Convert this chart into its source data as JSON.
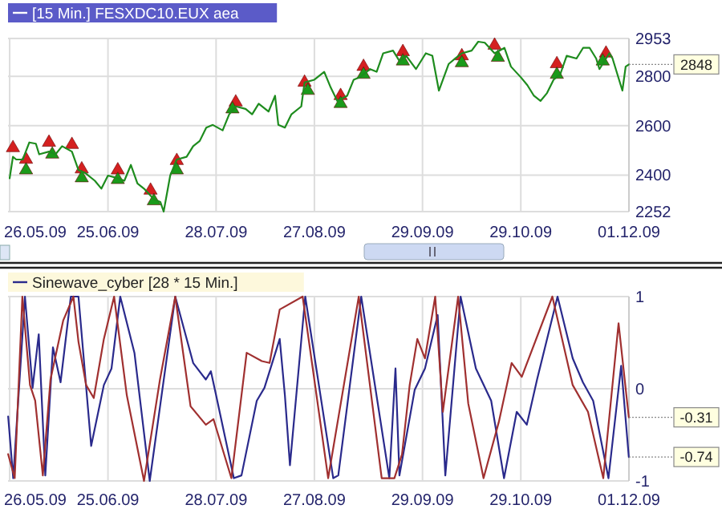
{
  "chart_data": [
    {
      "type": "line",
      "legend": "top left",
      "grid": true,
      "xlim": [
        "2009-05-25T12:00",
        "2009-12-01"
      ],
      "xticks": [
        {
          "value": "2009-05-26",
          "label": "26.05.09"
        },
        {
          "value": "2009-06-25",
          "label": "25.06.09"
        },
        {
          "value": "2009-07-28",
          "label": "28.07.09"
        },
        {
          "value": "2009-08-27",
          "label": "27.08.09"
        },
        {
          "value": "2009-09-29",
          "label": "29.09.09"
        },
        {
          "value": "2009-10-29",
          "label": "29.10.09"
        },
        {
          "value": "2009-12-01",
          "label": "01.12.09"
        }
      ],
      "ylim": [
        2252,
        2953
      ],
      "yticks": [
        2252,
        2400,
        2600,
        2800,
        2953
      ],
      "annotations": [
        {
          "text": "2848",
          "x": "2009-12-01",
          "y": 2848
        }
      ],
      "series": [
        {
          "name": "[15 Min.] FESXDC10.EUX aea",
          "color": "#1e8c1e",
          "x": [
            "2009-05-26",
            "2009-05-27",
            "2009-05-28",
            "2009-05-30",
            "2009-06-01",
            "2009-06-03",
            "2009-06-04",
            "2009-06-07",
            "2009-06-09",
            "2009-06-11",
            "2009-06-14",
            "2009-06-16",
            "2009-06-18",
            "2009-06-21",
            "2009-06-23",
            "2009-06-25",
            "2009-06-28",
            "2009-06-30",
            "2009-07-02",
            "2009-07-04",
            "2009-07-06",
            "2009-07-09",
            "2009-07-11",
            "2009-07-12",
            "2009-07-14",
            "2009-07-16",
            "2009-07-19",
            "2009-07-21",
            "2009-07-23",
            "2009-07-25",
            "2009-07-27",
            "2009-07-30",
            "2009-08-01",
            "2009-08-03",
            "2009-08-06",
            "2009-08-08",
            "2009-08-10",
            "2009-08-13",
            "2009-08-15",
            "2009-08-16",
            "2009-08-18",
            "2009-08-20",
            "2009-08-23",
            "2009-08-24",
            "2009-08-27",
            "2009-08-30",
            "2009-09-01",
            "2009-09-03",
            "2009-09-06",
            "2009-09-08",
            "2009-09-10",
            "2009-09-13",
            "2009-09-15",
            "2009-09-17",
            "2009-09-20",
            "2009-09-22",
            "2009-09-24",
            "2009-09-27",
            "2009-09-30",
            "2009-10-02",
            "2009-10-04",
            "2009-10-07",
            "2009-10-09",
            "2009-10-11",
            "2009-10-14",
            "2009-10-16",
            "2009-10-18",
            "2009-10-21",
            "2009-10-24",
            "2009-10-26",
            "2009-10-29",
            "2009-10-31",
            "2009-11-02",
            "2009-11-04",
            "2009-11-06",
            "2009-11-08",
            "2009-11-10",
            "2009-11-12",
            "2009-11-15",
            "2009-11-17",
            "2009-11-19",
            "2009-11-21",
            "2009-11-22",
            "2009-11-25",
            "2009-11-26",
            "2009-11-29",
            "2009-11-30",
            "2009-12-01"
          ],
          "values": [
            2387,
            2474,
            2463,
            2463,
            2532,
            2527,
            2484,
            2495,
            2484,
            2517,
            2495,
            2420,
            2409,
            2377,
            2345,
            2398,
            2387,
            2377,
            2441,
            2366,
            2345,
            2302,
            2291,
            2252,
            2398,
            2463,
            2474,
            2517,
            2538,
            2592,
            2603,
            2581,
            2646,
            2678,
            2668,
            2646,
            2689,
            2657,
            2721,
            2603,
            2592,
            2646,
            2678,
            2775,
            2786,
            2818,
            2754,
            2700,
            2721,
            2786,
            2797,
            2829,
            2818,
            2893,
            2904,
            2861,
            2883,
            2829,
            2893,
            2883,
            2742,
            2850,
            2872,
            2893,
            2904,
            2940,
            2936,
            2893,
            2915,
            2839,
            2796,
            2764,
            2721,
            2700,
            2732,
            2786,
            2807,
            2883,
            2872,
            2915,
            2915,
            2872,
            2829,
            2893,
            2872,
            2742,
            2839,
            2848
          ]
        },
        {
          "type": "scatter",
          "marker": "triangle",
          "color": "#d42020",
          "x": [
            "2009-05-27",
            "2009-05-31",
            "2009-06-07",
            "2009-06-14",
            "2009-06-17",
            "2009-06-28",
            "2009-07-08",
            "2009-07-16",
            "2009-08-03",
            "2009-08-24",
            "2009-09-04",
            "2009-09-11",
            "2009-09-23",
            "2009-10-11",
            "2009-10-21",
            "2009-11-09",
            "2009-11-24"
          ],
          "values": [
            2510,
            2463,
            2532,
            2523,
            2424,
            2420,
            2338,
            2458,
            2695,
            2775,
            2721,
            2839,
            2899,
            2882,
            2925,
            2850,
            2893
          ]
        },
        {
          "type": "scatter",
          "marker": "triangle",
          "color": "#1a9a1a",
          "x": [
            "2009-05-31",
            "2009-06-08",
            "2009-06-17",
            "2009-06-28",
            "2009-07-09",
            "2009-07-16",
            "2009-08-02",
            "2009-08-25",
            "2009-09-04",
            "2009-09-11",
            "2009-09-23",
            "2009-10-11",
            "2009-10-22",
            "2009-11-09",
            "2009-11-23"
          ],
          "values": [
            2420,
            2484,
            2388,
            2381,
            2295,
            2420,
            2667,
            2742,
            2689,
            2807,
            2861,
            2854,
            2876,
            2807,
            2861
          ]
        }
      ]
    },
    {
      "type": "line",
      "legend": "top left",
      "grid": true,
      "xlim": [
        "2009-05-25T12:00",
        "2009-12-01"
      ],
      "xticks": [
        {
          "value": "2009-05-26",
          "label": "26.05.09"
        },
        {
          "value": "2009-06-25",
          "label": "25.06.09"
        },
        {
          "value": "2009-07-28",
          "label": "28.07.09"
        },
        {
          "value": "2009-08-27",
          "label": "27.08.09"
        },
        {
          "value": "2009-09-29",
          "label": "29.09.09"
        },
        {
          "value": "2009-10-29",
          "label": "29.10.09"
        },
        {
          "value": "2009-12-01",
          "label": "01.12.09"
        }
      ],
      "ylim": [
        -1,
        1
      ],
      "yticks": [
        -1,
        0,
        1
      ],
      "annotations": [
        {
          "text": "-0.31",
          "x": "2009-12-01",
          "y": -0.31
        },
        {
          "text": "-0.74",
          "x": "2009-12-01",
          "y": -0.74
        }
      ],
      "series": [
        {
          "name": "Sinewave_cyber [28 * 15 Min.]",
          "color": "#2a2a8c",
          "x": [
            "2009-05-25T13:00",
            "2009-05-27T02:00",
            "2009-05-30T16:00",
            "2009-06-02",
            "2009-06-03T21:00",
            "2009-06-05T21:00",
            "2009-06-08T05:00",
            "2009-06-10T13:00",
            "2009-06-13T16:00",
            "2009-06-16",
            "2009-06-19T21:00",
            "2009-06-23T18:00",
            "2009-06-26T02:00",
            "2009-06-28T18:00",
            "2009-07-03T02:00",
            "2009-07-07T18:00",
            "2009-07-15T13:00",
            "2009-07-21",
            "2009-07-24T21:00",
            "2009-07-26T10:00",
            "2009-07-28",
            "2009-08-02T10:00",
            "2009-08-04T18:00",
            "2009-08-09T10:00",
            "2009-08-11T18:00",
            "2009-08-16T10:00",
            "2009-08-18",
            "2009-08-19T13:00",
            "2009-08-24T05:00",
            "2009-09-01T18:00",
            "2009-09-03T07:00",
            "2009-09-10T07:00",
            "2009-09-18T21:00",
            "2009-09-20T18:00",
            "2009-09-21T23:00",
            "2009-09-26T15:00",
            "2009-09-29T18:00",
            "2009-10-03T15:00",
            "2009-10-05T23:00",
            "2009-10-10T15:00",
            "2009-10-15T07:00",
            "2009-10-19T23:00",
            "2009-10-23T21:00",
            "2009-10-27T18:00",
            "2009-10-30T20:00",
            "2009-11-02T23:00",
            "2009-11-09T05:00",
            "2009-11-13T20:00",
            "2009-11-16T23:00",
            "2009-11-20T02:00",
            "2009-11-24T18:00",
            "2009-11-28T15:00",
            "2009-11-30T23:00"
          ],
          "values": [
            -0.3,
            -0.97,
            1,
            0.01,
            0.59,
            -0.94,
            0.45,
            0.07,
            1,
            1,
            -0.62,
            0.04,
            0.22,
            1,
            0.39,
            -1,
            1,
            0.28,
            0.1,
            0.19,
            -0.07,
            -0.97,
            -0.94,
            -0.13,
            0.01,
            0.54,
            -0.07,
            -0.83,
            1,
            -0.97,
            -0.94,
            1,
            -0.97,
            0.22,
            -0.94,
            -0.01,
            0.22,
            0.8,
            -0.94,
            1,
            0.22,
            -0.13,
            -0.97,
            -0.25,
            -0.39,
            0.1,
            1,
            0.33,
            0.07,
            -0.13,
            -0.97,
            0.25,
            -0.74
          ]
        },
        {
          "color": "#a03030",
          "x": [
            "2009-05-25T13:00",
            "2009-05-27T13:00",
            "2009-05-29T21:00",
            "2009-06-01T05:00",
            "2009-06-02T19:00",
            "2009-06-05T03:00",
            "2009-06-07T11:00",
            "2009-06-11T08:00",
            "2009-06-14T11:00",
            "2009-06-16",
            "2009-06-18T08:00",
            "2009-06-20T16:00",
            "2009-06-23T18:00",
            "2009-06-26T21:00",
            "2009-06-30T18:00",
            "2009-07-06",
            "2009-07-10T21:00",
            "2009-07-15T13:00",
            "2009-07-20T05:00",
            "2009-07-24T21:00",
            "2009-07-27T05:00",
            "2009-08-01T16:00",
            "2009-08-06T08:00",
            "2009-08-10T23:00",
            "2009-08-13T08:00",
            "2009-08-16T10:00",
            "2009-08-23T10:00",
            "2009-08-31T05:00",
            "2009-09-09T13:00",
            "2009-09-16T13:00",
            "2009-09-20T10:00",
            "2009-09-22T18:00",
            "2009-09-25T02:00",
            "2009-09-27T10:00",
            "2009-09-29T18:00",
            "2009-10-02T21:00",
            "2009-10-05T05:00",
            "2009-10-09T21:00",
            "2009-10-12T23:00",
            "2009-10-17T15:00",
            "2009-10-22T07:00",
            "2009-10-26T05:00",
            "2009-10-29T07:00",
            "2009-11-07T15:00",
            "2009-11-13T20:00",
            "2009-11-18T12:00",
            "2009-11-23T04:00",
            "2009-11-27T20:00",
            "2009-11-30T23:00"
          ],
          "values": [
            -0.71,
            -0.97,
            1,
            0.04,
            -0.13,
            -0.94,
            0.1,
            0.74,
            1,
            0.51,
            0.04,
            -0.1,
            0.54,
            1,
            -0.07,
            -1,
            0.1,
            1,
            -0.19,
            -0.39,
            -0.33,
            -0.97,
            0.39,
            0.3,
            0.28,
            0.86,
            1,
            -0.97,
            1,
            -0.97,
            -0.97,
            -0.71,
            0.04,
            0.54,
            0.33,
            1,
            -0.25,
            1,
            -0.16,
            -0.97,
            -0.36,
            0.28,
            0.13,
            1,
            0.04,
            -0.25,
            -0.97,
            0.71,
            -0.31
          ]
        }
      ]
    }
  ]
}
